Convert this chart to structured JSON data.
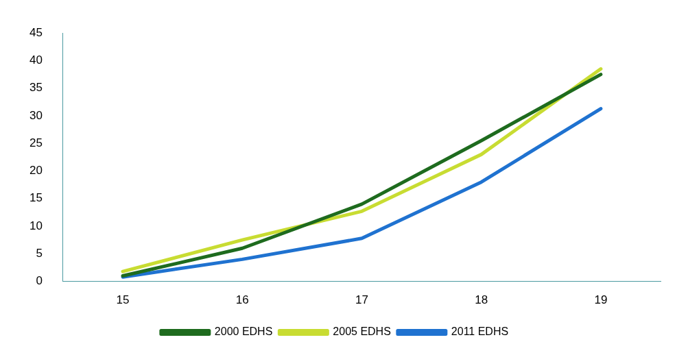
{
  "chart_data": {
    "type": "line",
    "categories": [
      "15",
      "16",
      "17",
      "18",
      "19"
    ],
    "series": [
      {
        "name": "2000 EDHS",
        "color": "#1e6b1e",
        "values": [
          1,
          6,
          14,
          25.5,
          37.5
        ]
      },
      {
        "name": "2005 EDHS",
        "color": "#c8dc32",
        "values": [
          1.8,
          7.5,
          12.7,
          23,
          38.5
        ]
      },
      {
        "name": "2011 EDHS",
        "color": "#1f72d0",
        "values": [
          0.8,
          4,
          7.8,
          18,
          31.3
        ]
      }
    ],
    "ylim": [
      0,
      45
    ],
    "yticks": [
      0,
      5,
      10,
      15,
      20,
      25,
      30,
      35,
      40,
      45
    ],
    "grid": false,
    "legend": "bottom",
    "marker": "none",
    "line_style": "solid"
  }
}
